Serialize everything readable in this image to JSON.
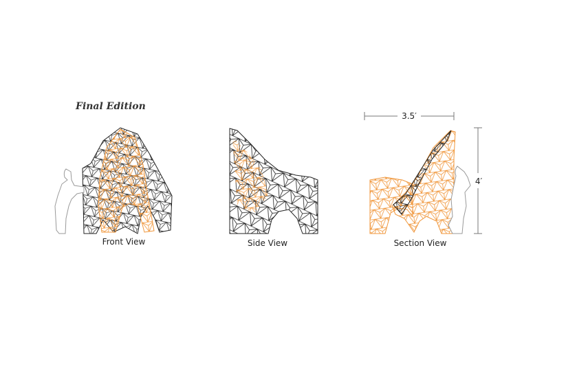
{
  "title": "Final Edition",
  "views": [
    {
      "label": "Front View"
    },
    {
      "label": "Side View"
    },
    {
      "label": "Section View"
    }
  ],
  "dimensions": {
    "width": "3.5′",
    "height": "4′"
  }
}
